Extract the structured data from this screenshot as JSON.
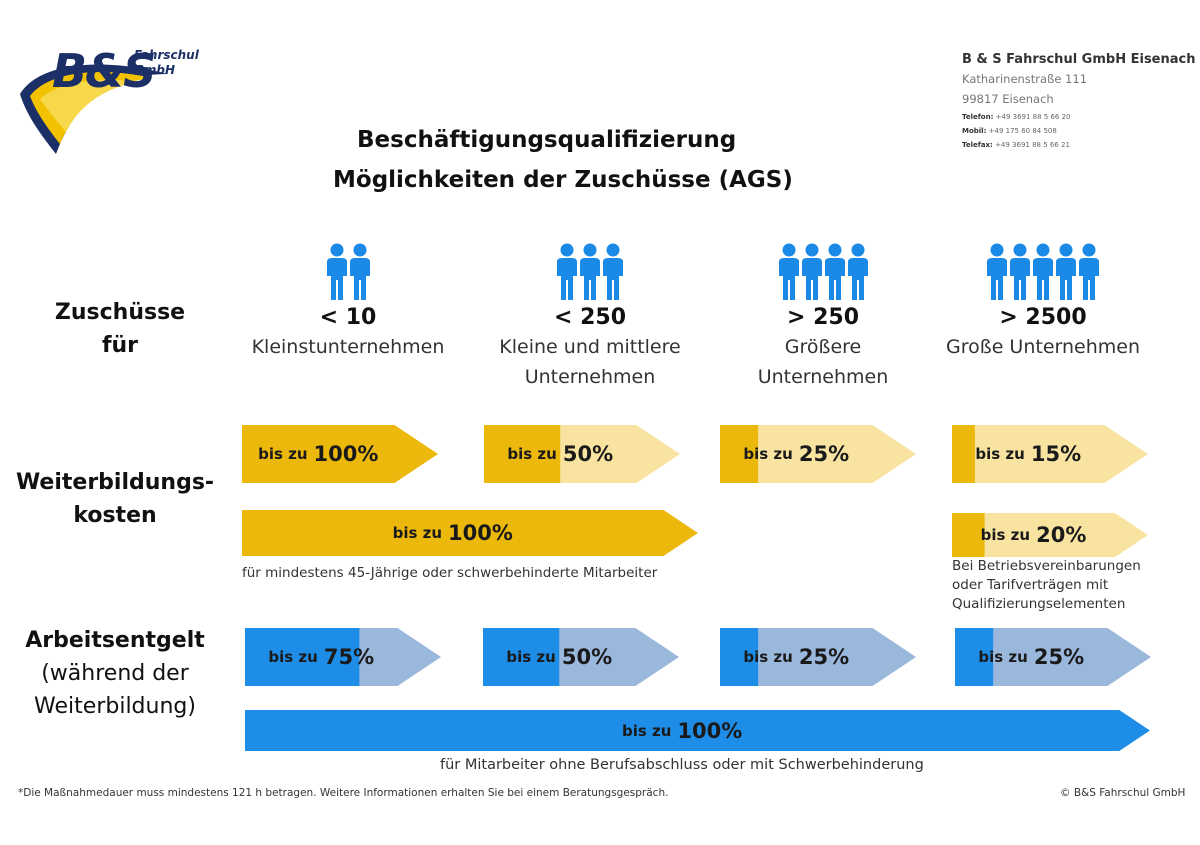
{
  "logo": {
    "brand": "B&S",
    "text_line1": "Fahrschul",
    "text_line2": "GmbH"
  },
  "company": {
    "name": "B & S Fahrschul GmbH Eisenach",
    "street": "Katharinenstraße 111",
    "city": "99817 Eisenach",
    "phone_label": "Telefon:",
    "phone": "+49  3691 88 5 66 20",
    "mobile_label": "Mobil:",
    "mobile": "+49 175 60 84 508",
    "fax_label": "Telefax:",
    "fax": "+49  3691 88 5 66 21"
  },
  "title": {
    "line1": "Beschäftigungsqualifizierung",
    "line2": "Möglichkeiten der Zuschüsse (AGS)"
  },
  "row_labels": {
    "zuschuesse_line1": "Zuschüsse",
    "zuschuesse_line2": "für",
    "weiterbildung_line1": "Weiterbildungs-",
    "weiterbildung_line2": "kosten",
    "arbeitsentgelt_line1": "Arbeitsentgelt",
    "arbeitsentgelt_line2": "(während der",
    "arbeitsentgelt_line3": "Weiterbildung)"
  },
  "categories": [
    {
      "count": "< 10",
      "desc_line1": "Kleinstunternehmen",
      "desc_line2": "",
      "people": 2
    },
    {
      "count": "< 250",
      "desc_line1": "Kleine und mittlere",
      "desc_line2": "Unternehmen",
      "people": 3
    },
    {
      "count": "> 250",
      "desc_line1": "Größere",
      "desc_line2": "Unternehmen",
      "people": 4
    },
    {
      "count": "> 2500",
      "desc_line1": "Große Unternehmen",
      "desc_line2": "",
      "people": 5
    }
  ],
  "bar_prefix": "bis zu",
  "colors": {
    "gold": "#ebb80b",
    "gold_light": "#f8e4a0",
    "blue": "#1d8de8",
    "blue_light": "#9ab7dc",
    "person": "#1a8ae6"
  },
  "chart_data": {
    "type": "bar",
    "title": "Möglichkeiten der Zuschüsse (AGS)",
    "categories": [
      "< 10",
      "< 250",
      "> 250",
      "> 2500"
    ],
    "series": [
      {
        "name": "Weiterbildungskosten",
        "values": [
          100,
          50,
          25,
          15
        ]
      },
      {
        "name": "Weiterbildungskosten (mindestens 45-Jährige oder schwerbehinderte Mitarbeiter)",
        "values": [
          100,
          100,
          null,
          null
        ]
      },
      {
        "name": "Weiterbildungskosten (Betriebsvereinbarungen oder Tarifverträge)",
        "values": [
          null,
          null,
          null,
          20
        ]
      },
      {
        "name": "Arbeitsentgelt",
        "values": [
          75,
          50,
          25,
          25
        ]
      },
      {
        "name": "Arbeitsentgelt (Mitarbeiter ohne Berufsabschluss oder mit Schwerbehinderung)",
        "values": [
          100,
          100,
          100,
          100
        ]
      }
    ],
    "labels": {
      "wb_k1": "100%",
      "wb_k2": "50%",
      "wb_k3": "25%",
      "wb_k4": "15%",
      "wb_45": "100%",
      "wb_tarif": "20%",
      "ae_k1": "75%",
      "ae_k2": "50%",
      "ae_k3": "25%",
      "ae_k4": "25%",
      "ae_all": "100%"
    },
    "ylim": [
      0,
      100
    ]
  },
  "notes": {
    "wb_45": "für mindestens 45-Jährige oder schwerbehinderte Mitarbeiter",
    "tarif_line1": "Bei Betriebsvereinbarungen",
    "tarif_line2": "oder Tarifverträgen mit",
    "tarif_line3": "Qualifizierungselementen",
    "ae_all": "für Mitarbeiter ohne Berufsabschluss oder mit Schwerbehinderung"
  },
  "footer": {
    "disclaimer": "*Die Maßnahmedauer muss mindestens 121 h betragen. Weitere Informationen erhalten Sie bei einem Beratungsgespräch.",
    "copyright": "© B&S Fahrschul GmbH"
  }
}
